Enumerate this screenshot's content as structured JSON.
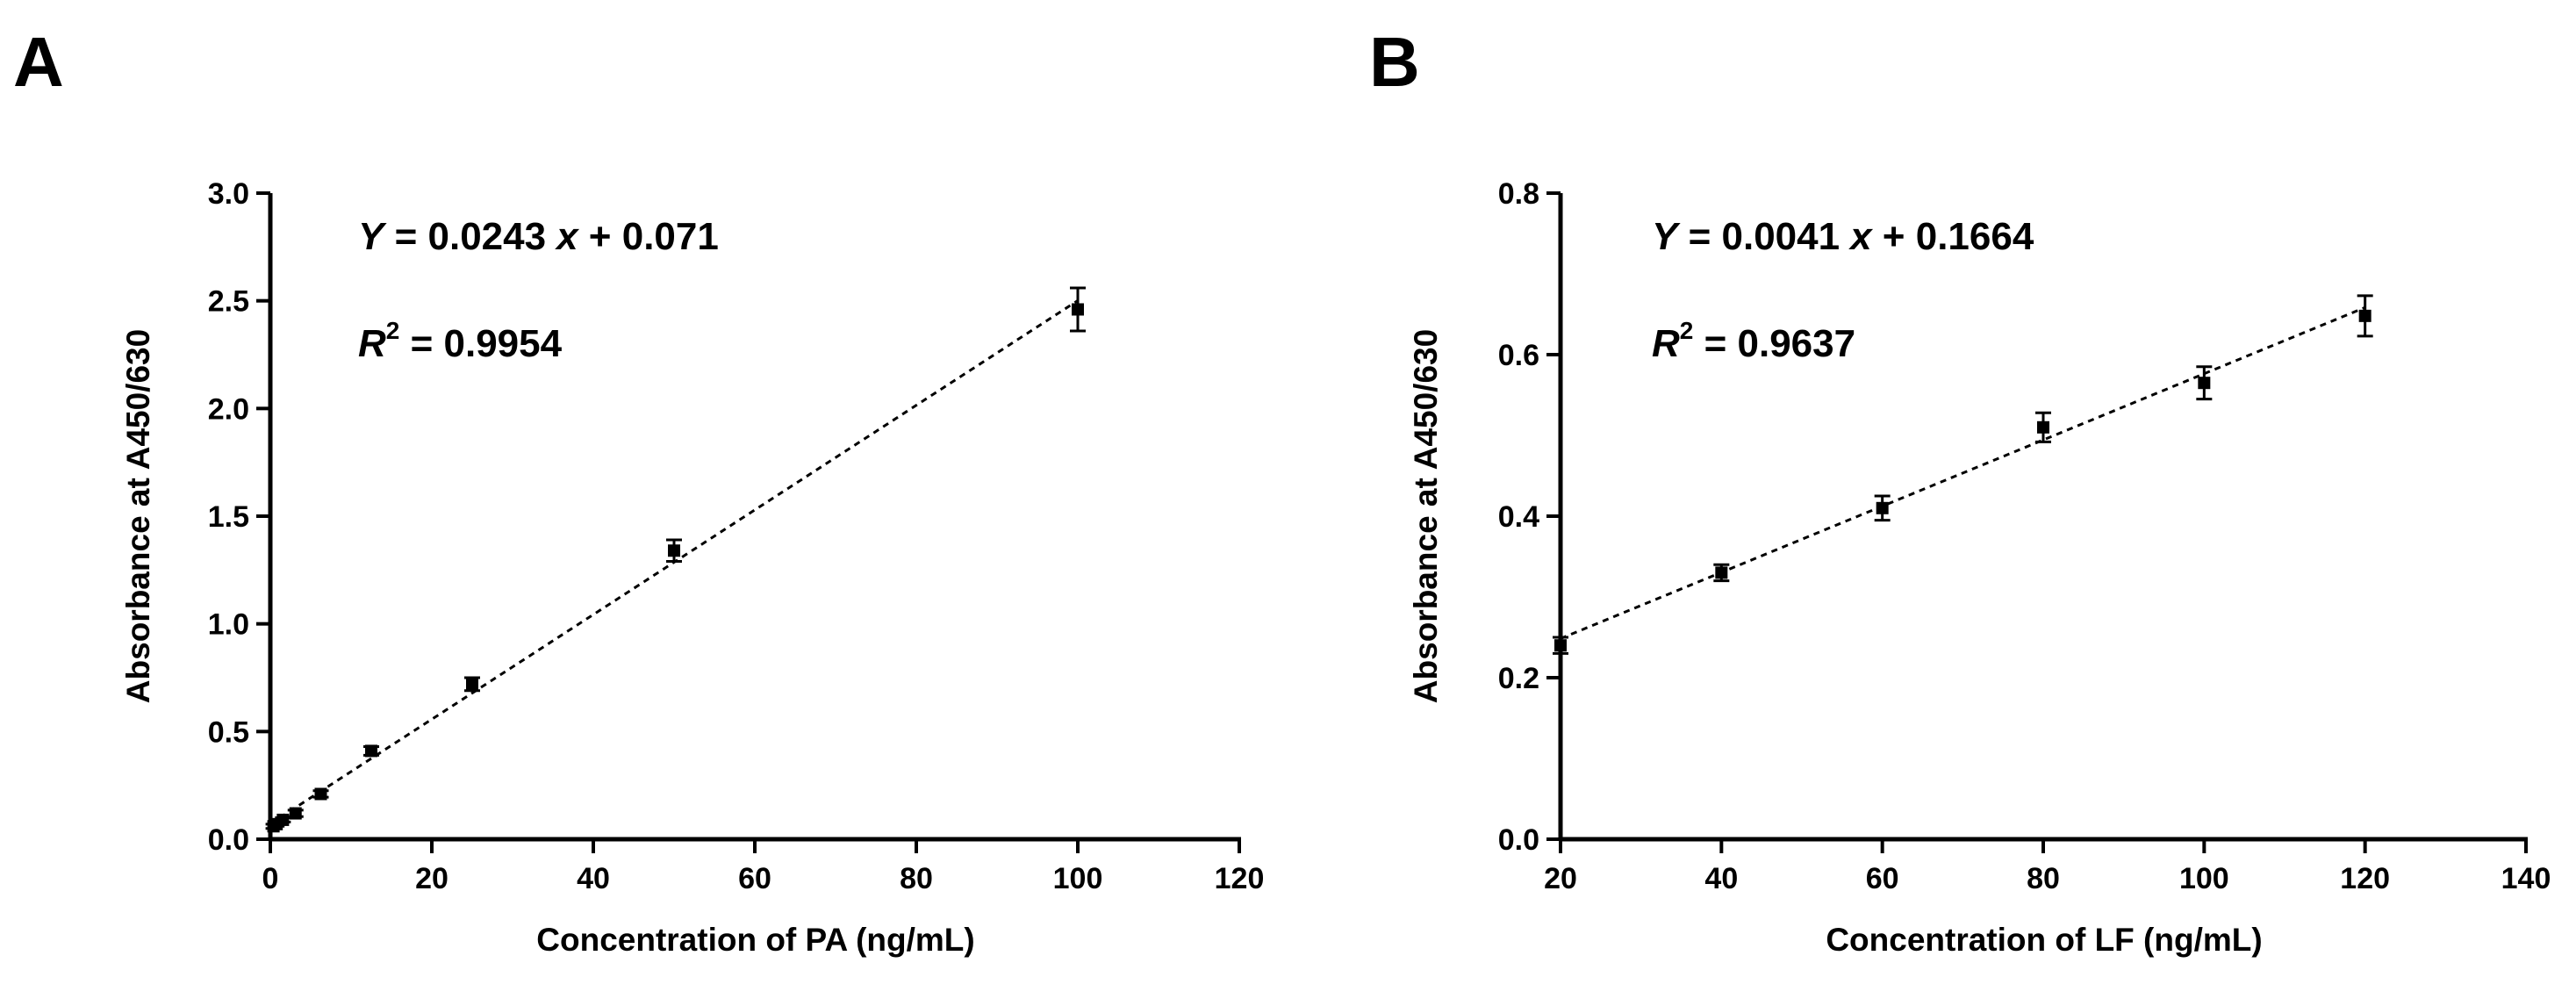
{
  "chart_data": [
    {
      "panel": "A",
      "type": "scatter",
      "xlabel": "Concentration of PA (ng/mL)",
      "ylabel": "Absorbance at A450/630",
      "xlim": [
        0,
        120
      ],
      "ylim": [
        0,
        3.0
      ],
      "x_ticks": [
        0,
        20,
        40,
        60,
        80,
        100,
        120
      ],
      "y_ticks": [
        0.0,
        0.5,
        1.0,
        1.5,
        2.0,
        2.5,
        3.0
      ],
      "x_tick_labels": [
        "0",
        "20",
        "40",
        "60",
        "80",
        "100",
        "120"
      ],
      "y_tick_labels": [
        "0.0",
        "0.5",
        "1.0",
        "1.5",
        "2.0",
        "2.5",
        "3.0"
      ],
      "points": [
        {
          "x": 0.39,
          "y": 0.06,
          "err": 0.01
        },
        {
          "x": 0.78,
          "y": 0.07,
          "err": 0.01
        },
        {
          "x": 1.56,
          "y": 0.09,
          "err": 0.01
        },
        {
          "x": 3.125,
          "y": 0.12,
          "err": 0.015
        },
        {
          "x": 6.25,
          "y": 0.21,
          "err": 0.015
        },
        {
          "x": 12.5,
          "y": 0.41,
          "err": 0.02
        },
        {
          "x": 25,
          "y": 0.72,
          "err": 0.03
        },
        {
          "x": 50,
          "y": 1.34,
          "err": 0.05
        },
        {
          "x": 100,
          "y": 2.46,
          "err": 0.1
        }
      ],
      "fit": {
        "slope": 0.0243,
        "intercept": 0.071,
        "x_range": [
          0,
          100
        ]
      },
      "equation": {
        "y_var": "Y",
        "eq": " = 0.0243",
        "x_var": "x",
        "tail": " + 0.071"
      },
      "r2": {
        "r": "R",
        "sup": "2",
        "value": " = 0.9954"
      }
    },
    {
      "panel": "B",
      "type": "scatter",
      "xlabel": "Concentration of LF (ng/mL)",
      "ylabel": "Absorbance at A450/630",
      "xlim": [
        20,
        140
      ],
      "ylim": [
        0,
        0.8
      ],
      "x_ticks": [
        20,
        40,
        60,
        80,
        100,
        120,
        140
      ],
      "y_ticks": [
        0.0,
        0.2,
        0.4,
        0.6,
        0.8
      ],
      "x_tick_labels": [
        "20",
        "40",
        "60",
        "80",
        "100",
        "120",
        "140"
      ],
      "y_tick_labels": [
        "0.0",
        "0.2",
        "0.4",
        "0.6",
        "0.8"
      ],
      "points": [
        {
          "x": 20,
          "y": 0.24,
          "err": 0.01
        },
        {
          "x": 40,
          "y": 0.33,
          "err": 0.01
        },
        {
          "x": 60,
          "y": 0.41,
          "err": 0.015
        },
        {
          "x": 80,
          "y": 0.51,
          "err": 0.018
        },
        {
          "x": 100,
          "y": 0.565,
          "err": 0.02
        },
        {
          "x": 120,
          "y": 0.648,
          "err": 0.025
        }
      ],
      "fit": {
        "slope": 0.0041,
        "intercept": 0.1664,
        "x_range": [
          20,
          120
        ]
      },
      "equation": {
        "y_var": "Y",
        "eq": " = 0.0041",
        "x_var": "x",
        "tail": " + 0.1664"
      },
      "r2": {
        "r": "R",
        "sup": "2",
        "value": " = 0.9637"
      }
    }
  ]
}
